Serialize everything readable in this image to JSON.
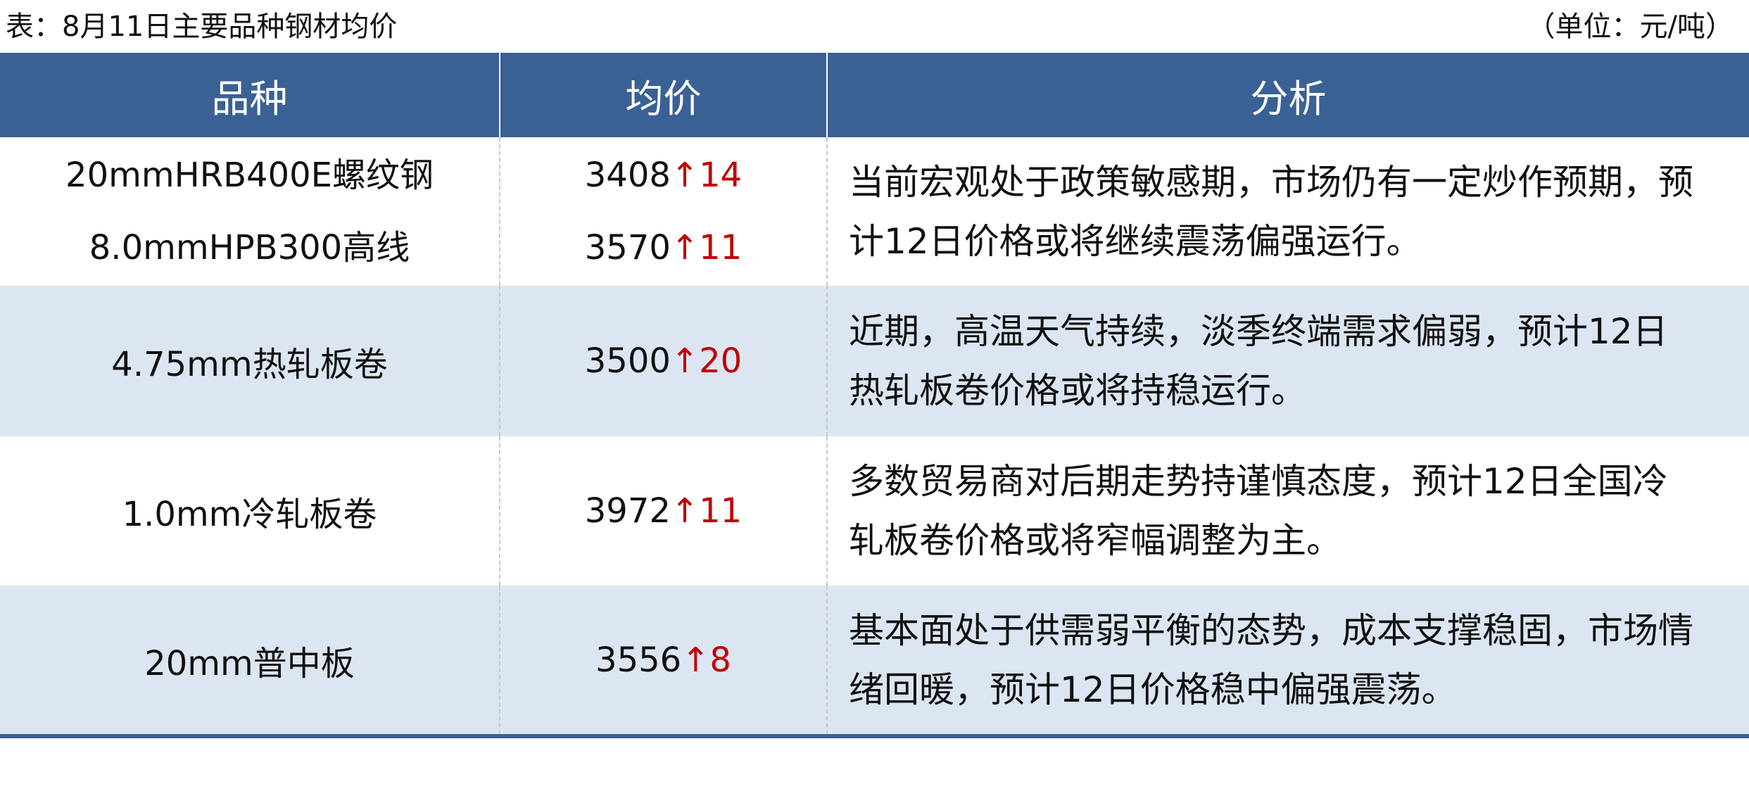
{
  "title": "表：8月11日主要品种钢材均价",
  "unit": "（单位：元/吨）",
  "colors": {
    "header": "#3a6194",
    "alt_row": "#dce6f2",
    "up": "#c00000"
  },
  "headers": [
    "品种",
    "均价",
    "分析"
  ],
  "rows": [
    {
      "items": [
        {
          "name": "20mmHRB400E螺纹钢",
          "price": "3408",
          "arrow": "↑",
          "change": "14"
        },
        {
          "name": "8.0mmHPB300高线",
          "price": "3570",
          "arrow": "↑",
          "change": "11"
        }
      ],
      "analysis": [
        "当前宏观处于政策敏感期，市场仍有一定炒作预期，预",
        "计12日价格或将继续震荡偏强运行。"
      ]
    },
    {
      "items": [
        {
          "name": "4.75mm热轧板卷",
          "price": "3500",
          "arrow": "↑",
          "change": "20"
        }
      ],
      "analysis": [
        "近期，高温天气持续，淡季终端需求偏弱，预计12日",
        "热轧板卷价格或将持稳运行。"
      ]
    },
    {
      "items": [
        {
          "name": "1.0mm冷轧板卷",
          "price": "3972",
          "arrow": "↑",
          "change": "11"
        }
      ],
      "analysis": [
        "多数贸易商对后期走势持谨慎态度，预计12日全国冷",
        "轧板卷价格或将窄幅调整为主。"
      ]
    },
    {
      "items": [
        {
          "name": "20mm普中板",
          "price": "3556",
          "arrow": "↑",
          "change": "8"
        }
      ],
      "analysis": [
        "基本面处于供需弱平衡的态势，成本支撑稳固，市场情",
        "绪回暖，预计12日价格稳中偏强震荡。"
      ]
    }
  ]
}
